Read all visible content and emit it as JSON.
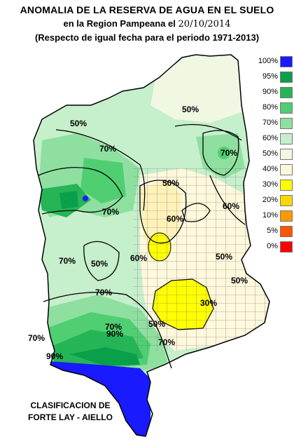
{
  "title": {
    "line1": "ANOMALIA DE LA RESERVA DE AGUA EN EL SUELO",
    "line2_prefix": "en la Region Pampeana el",
    "date": "20/10/2014",
    "line3": "(Respecto de igual fecha para el periodo 1971-2013)"
  },
  "legend": [
    {
      "label": "100%",
      "color": "#1a1aff"
    },
    {
      "label": "95%",
      "color": "#0aa04a"
    },
    {
      "label": "90%",
      "color": "#26b556"
    },
    {
      "label": "80%",
      "color": "#4fcf72"
    },
    {
      "label": "70%",
      "color": "#8fe0a0"
    },
    {
      "label": "60%",
      "color": "#c6efcc"
    },
    {
      "label": "50%",
      "color": "#f0f8e4"
    },
    {
      "label": "40%",
      "color": "#fff8dc"
    },
    {
      "label": "30%",
      "color": "#ffff00"
    },
    {
      "label": "20%",
      "color": "#ffd700"
    },
    {
      "label": "10%",
      "color": "#ff9900"
    },
    {
      "label": "5%",
      "color": "#ff5500"
    },
    {
      "label": "0%",
      "color": "#ff0000"
    }
  ],
  "contour_labels": [
    "50%",
    "70%",
    "70%",
    "50%",
    "70%",
    "70%",
    "70%",
    "50%",
    "60%",
    "50%",
    "50%",
    "60%",
    "70%",
    "50%",
    "30%",
    "50%",
    "70%",
    "70%",
    "90%",
    "90%",
    "60%"
  ],
  "credit": {
    "line1": "CLASIFICACION DE",
    "line2": "FORTE LAY - AIELLO"
  }
}
